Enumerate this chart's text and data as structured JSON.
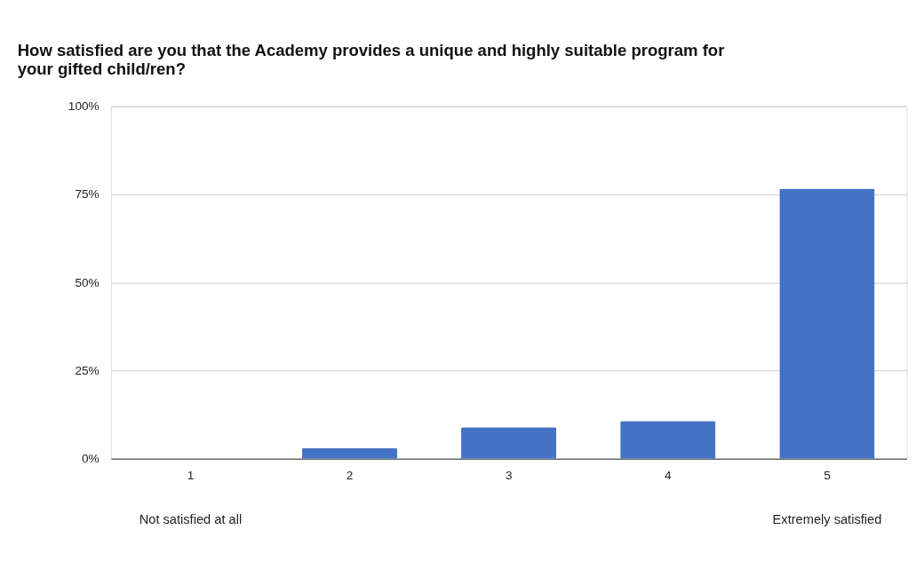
{
  "chart_data": {
    "type": "bar",
    "title": "How satisfied are you that the Academy provides a unique and highly suitable program for your gifted child/ren?",
    "categories": [
      "1",
      "2",
      "3",
      "4",
      "5"
    ],
    "values": [
      0,
      3.0,
      8.9,
      10.7,
      76.6
    ],
    "color": "#4472c4",
    "ylim": [
      0,
      100
    ],
    "yticks": [
      {
        "value": 0,
        "label": "0%"
      },
      {
        "value": 25,
        "label": "25%"
      },
      {
        "value": 50,
        "label": "50%"
      },
      {
        "value": 75,
        "label": "75%"
      },
      {
        "value": 100,
        "label": "100%"
      }
    ],
    "grid": "y",
    "annotations": [
      "Not satisfied at all",
      "Extremely satisfied"
    ]
  }
}
